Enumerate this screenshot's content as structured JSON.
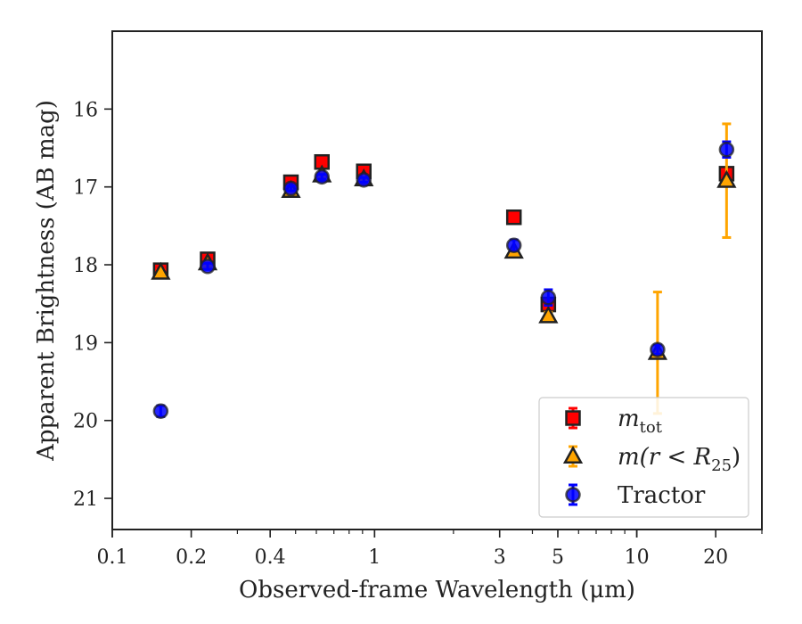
{
  "chart_data": {
    "type": "scatter",
    "xscale": "log",
    "yscale": "linear",
    "y_inverted": true,
    "xlim": [
      0.1,
      30
    ],
    "ylim": [
      21.4,
      15.0
    ],
    "xlabel": "Observed-frame Wavelength (μm)",
    "ylabel": "Apparent Brightness (AB mag)",
    "x_ticks": [
      {
        "value": 0.1,
        "label": "0.1"
      },
      {
        "value": 0.2,
        "label": "0.2"
      },
      {
        "value": 0.4,
        "label": "0.4"
      },
      {
        "value": 1,
        "label": "1"
      },
      {
        "value": 3,
        "label": "3"
      },
      {
        "value": 5,
        "label": "5"
      },
      {
        "value": 10,
        "label": "10"
      },
      {
        "value": 20,
        "label": "20"
      }
    ],
    "y_ticks": [
      {
        "value": 16,
        "label": "16"
      },
      {
        "value": 17,
        "label": "17"
      },
      {
        "value": 18,
        "label": "18"
      },
      {
        "value": 19,
        "label": "19"
      },
      {
        "value": 20,
        "label": "20"
      },
      {
        "value": 21,
        "label": "21"
      }
    ],
    "legend_position": "lower-right",
    "series": [
      {
        "name": "m_tot",
        "marker": "square",
        "color": "#ff0000",
        "errcolor": "#ff0000",
        "points": [
          {
            "x": 0.153,
            "y": 18.07,
            "err": 0.03
          },
          {
            "x": 0.231,
            "y": 17.93,
            "err": 0.03
          },
          {
            "x": 0.48,
            "y": 16.94,
            "err": 0.03
          },
          {
            "x": 0.63,
            "y": 16.68,
            "err": 0.03
          },
          {
            "x": 0.91,
            "y": 16.8,
            "err": 0.03
          },
          {
            "x": 3.4,
            "y": 17.39,
            "err": 0.02
          },
          {
            "x": 4.6,
            "y": 18.51,
            "err": 0.03
          },
          {
            "x": 22.0,
            "y": 16.83,
            "err": 0.03
          }
        ]
      },
      {
        "name": "m(r < R25)",
        "marker": "triangle",
        "color": "#ffa500",
        "errcolor": "#ffa500",
        "points": [
          {
            "x": 0.153,
            "y": 18.1,
            "err": 0.03
          },
          {
            "x": 0.231,
            "y": 17.98,
            "err": 0.03
          },
          {
            "x": 0.48,
            "y": 17.05,
            "err": 0.02
          },
          {
            "x": 0.63,
            "y": 16.85,
            "err": 0.02
          },
          {
            "x": 0.91,
            "y": 16.9,
            "err": 0.02
          },
          {
            "x": 3.4,
            "y": 17.83,
            "err": 0.03
          },
          {
            "x": 4.6,
            "y": 18.66,
            "err": 0.05
          },
          {
            "x": 12.0,
            "y": 19.13,
            "err": 0.78
          },
          {
            "x": 22.0,
            "y": 16.92,
            "err": 0.73
          }
        ]
      },
      {
        "name": "Tractor",
        "marker": "circle",
        "color": "#0000ff",
        "errcolor": "#0000ff",
        "points": [
          {
            "x": 0.153,
            "y": 19.88,
            "err": 0.07
          },
          {
            "x": 0.231,
            "y": 18.02,
            "err": 0.04
          },
          {
            "x": 0.48,
            "y": 17.02,
            "err": 0.03
          },
          {
            "x": 0.63,
            "y": 16.87,
            "err": 0.03
          },
          {
            "x": 0.91,
            "y": 16.91,
            "err": 0.03
          },
          {
            "x": 3.4,
            "y": 17.75,
            "err": 0.07
          },
          {
            "x": 4.6,
            "y": 18.42,
            "err": 0.1
          },
          {
            "x": 12.0,
            "y": 19.09,
            "err": 0.06
          },
          {
            "x": 22.0,
            "y": 16.52,
            "err": 0.1
          }
        ]
      }
    ],
    "legend": [
      {
        "series": 0,
        "main": "m",
        "sub": "tot",
        "rest": ""
      },
      {
        "series": 1,
        "main": "m(r < R",
        "sub": "25",
        "rest": ")"
      },
      {
        "series": 2,
        "main": "Tractor",
        "sub": "",
        "rest": ""
      }
    ]
  }
}
